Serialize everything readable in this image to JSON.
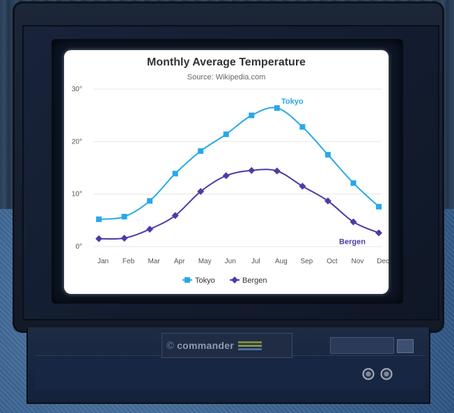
{
  "brand": {
    "logo": "©",
    "name": "commander",
    "model_text": "",
    "stripe_colors": [
      "#7d8b3d",
      "#8a8e4b",
      "#4b6f9c"
    ]
  },
  "colors": {
    "tokyo": "#27a9e8",
    "bergen": "#4b3ca8",
    "grid": "#e6e6e6",
    "screen_bg": "#ffffff"
  },
  "chart_data": {
    "type": "line",
    "title": "Monthly Average Temperature",
    "subtitle": "Source: Wikipedia.com",
    "categories": [
      "Jan",
      "Feb",
      "Mar",
      "Apr",
      "May",
      "Jun",
      "Jul",
      "Aug",
      "Sep",
      "Oct",
      "Nov",
      "Dec"
    ],
    "y_ticks": [
      "0°",
      "10°",
      "20°",
      "30°"
    ],
    "ylim": [
      0,
      30
    ],
    "grid": true,
    "legend_position": "bottom",
    "series": [
      {
        "name": "Tokyo",
        "marker": "square",
        "color": "#27a9e8",
        "values": [
          5.2,
          5.7,
          8.7,
          13.9,
          18.2,
          21.4,
          25.0,
          26.4,
          22.8,
          17.5,
          12.1,
          7.6
        ]
      },
      {
        "name": "Bergen",
        "marker": "diamond",
        "color": "#4b3ca8",
        "values": [
          1.5,
          1.6,
          3.3,
          5.9,
          10.5,
          13.5,
          14.5,
          14.4,
          11.5,
          8.7,
          4.7,
          2.6
        ]
      }
    ]
  }
}
